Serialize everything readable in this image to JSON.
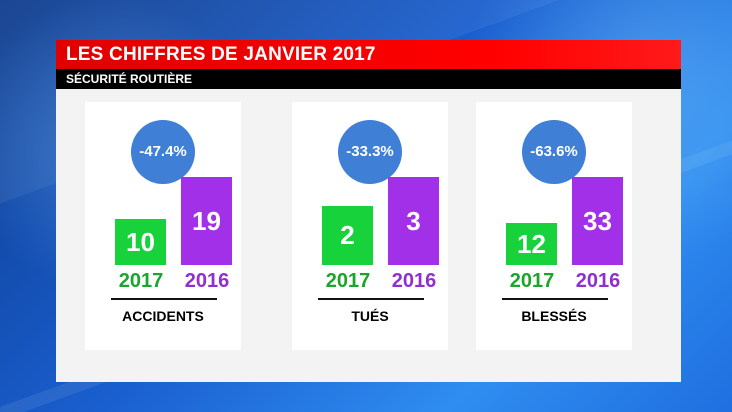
{
  "header": {
    "title": "LES CHIFFRES DE JANVIER 2017",
    "subtitle": "SÉCURITÉ ROUTIÈRE"
  },
  "colors": {
    "title_bar": "#ff0000",
    "bar_2017": "#18d23c",
    "bar_2016": "#a230e8",
    "badge": "#3f7fd6"
  },
  "chart_data": {
    "type": "bar",
    "title": "LES CHIFFRES DE JANVIER 2017",
    "subtitle": "SÉCURITÉ ROUTIÈRE",
    "categories": [
      "ACCIDENTS",
      "TUÉS",
      "BLESSÉS"
    ],
    "series": [
      {
        "name": "2017",
        "values": [
          10,
          2,
          12
        ]
      },
      {
        "name": "2016",
        "values": [
          19,
          3,
          33
        ]
      }
    ],
    "changes": [
      "-47.4%",
      "-33.3%",
      "-63.6%"
    ]
  },
  "panels": [
    {
      "category": "ACCIDENTS",
      "change": "-47.4%",
      "v2017": "10",
      "v2016": "19",
      "label_2017": "2017",
      "label_2016": "2016"
    },
    {
      "category": "TUÉS",
      "change": "-33.3%",
      "v2017": "2",
      "v2016": "3",
      "label_2017": "2017",
      "label_2016": "2016"
    },
    {
      "category": "BLESSÉS",
      "change": "-63.6%",
      "v2017": "12",
      "v2016": "33",
      "label_2017": "2017",
      "label_2016": "2016"
    }
  ]
}
